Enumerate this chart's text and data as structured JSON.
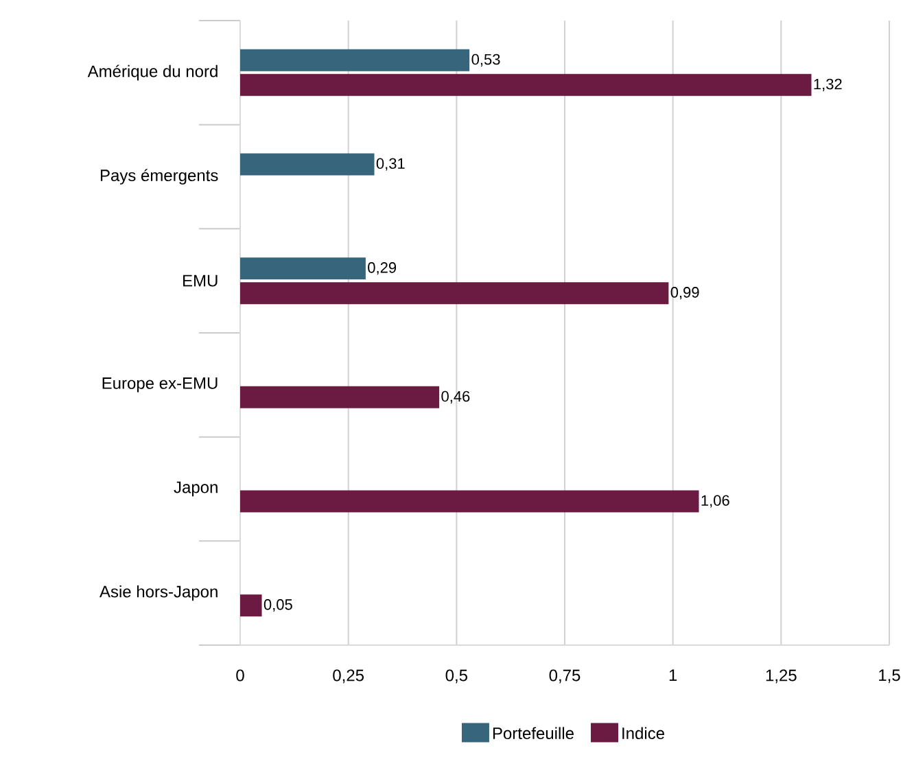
{
  "chart_data": {
    "type": "bar",
    "orientation": "horizontal",
    "categories": [
      "Amérique du nord",
      "Pays émergents",
      "EMU",
      "Europe ex-EMU",
      "Japon",
      "Asie hors-Japon"
    ],
    "series": [
      {
        "name": "Portefeuille",
        "color": "#36657c",
        "values": [
          0.53,
          0.31,
          0.29,
          null,
          null,
          null
        ],
        "value_labels": [
          "0,53",
          "0,31",
          "0,29",
          null,
          null,
          null
        ]
      },
      {
        "name": "Indice",
        "color": "#6b1a42",
        "values": [
          1.32,
          null,
          0.99,
          0.46,
          1.06,
          0.05
        ],
        "value_labels": [
          "1,32",
          null,
          "0,99",
          "0,46",
          "1,06",
          "0,05"
        ]
      }
    ],
    "xlim": [
      0,
      1.5
    ],
    "xticks": [
      0,
      {
        "value": 0.25,
        "label": "0,25"
      },
      {
        "value": 0.5,
        "label": "0,5"
      },
      {
        "value": 0.75,
        "label": "0,75"
      },
      1,
      {
        "value": 1.25,
        "label": "1,25"
      },
      {
        "value": 1.5,
        "label": "1,5"
      }
    ],
    "grid": "x",
    "legend": "bottom"
  }
}
